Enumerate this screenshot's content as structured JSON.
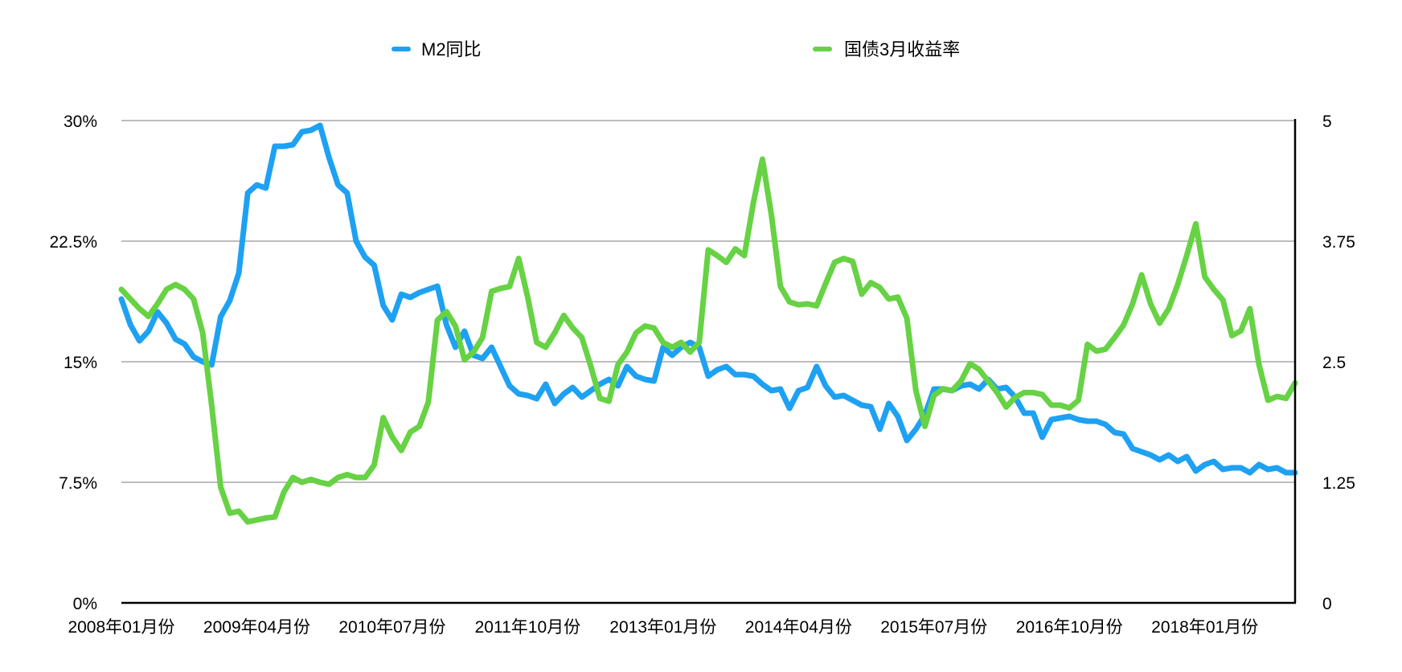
{
  "chart_data": {
    "type": "line",
    "title": "",
    "xlabel": "",
    "ylabel": "",
    "x_tick_labels": [
      "2008年01月份",
      "2009年04月份",
      "2010年07月份",
      "2011年10月份",
      "2013年01月份",
      "2014年04月份",
      "2015年07月份",
      "2016年10月份",
      "2018年01月份"
    ],
    "x_tick_positions": [
      0,
      15,
      30,
      45,
      60,
      75,
      90,
      105,
      120
    ],
    "x_count": 131,
    "y_left": {
      "ticks": [
        "0%",
        "7.5%",
        "15%",
        "22.5%",
        "30%"
      ],
      "min": 0,
      "max": 30,
      "unit": "%"
    },
    "y_right": {
      "ticks": [
        "0",
        "1.25",
        "2.5",
        "3.75",
        "5"
      ],
      "min": 0,
      "max": 5
    },
    "grid": true,
    "legend_position": "top",
    "series": [
      {
        "name": "M2同比",
        "axis": "left",
        "color": "#1EA1F2",
        "values": [
          18.9,
          17.3,
          16.3,
          16.9,
          18.1,
          17.4,
          16.4,
          16.1,
          15.3,
          15.0,
          14.8,
          17.8,
          18.8,
          20.5,
          25.5,
          26.0,
          25.8,
          28.4,
          28.4,
          28.5,
          29.3,
          29.4,
          29.7,
          27.7,
          26.0,
          25.5,
          22.5,
          21.5,
          21.0,
          18.5,
          17.6,
          19.2,
          19.0,
          19.3,
          19.5,
          19.7,
          17.3,
          15.9,
          16.9,
          15.4,
          15.2,
          15.9,
          14.7,
          13.5,
          13.0,
          12.9,
          12.7,
          13.6,
          12.4,
          13.0,
          13.4,
          12.8,
          13.2,
          13.6,
          13.9,
          13.5,
          14.7,
          14.1,
          13.9,
          13.8,
          15.9,
          15.4,
          15.9,
          16.2,
          15.9,
          14.1,
          14.5,
          14.7,
          14.2,
          14.2,
          14.1,
          13.6,
          13.2,
          13.3,
          12.1,
          13.2,
          13.4,
          14.7,
          13.5,
          12.8,
          12.9,
          12.6,
          12.3,
          12.2,
          10.8,
          12.4,
          11.6,
          10.1,
          10.8,
          11.7,
          13.3,
          13.3,
          13.2,
          13.5,
          13.6,
          13.3,
          13.9,
          13.3,
          13.4,
          12.8,
          11.8,
          11.8,
          10.3,
          11.4,
          11.5,
          11.6,
          11.4,
          11.3,
          11.3,
          11.1,
          10.6,
          10.5,
          9.6,
          9.4,
          9.2,
          8.9,
          9.2,
          8.8,
          9.1,
          8.2,
          8.6,
          8.8,
          8.3,
          8.4,
          8.4,
          8.1,
          8.6,
          8.3,
          8.4,
          8.1,
          8.1
        ]
      },
      {
        "name": "国债3月收益率",
        "axis": "right",
        "color": "#66D244",
        "values": [
          3.25,
          3.15,
          3.05,
          2.97,
          3.1,
          3.25,
          3.3,
          3.25,
          3.15,
          2.8,
          2.05,
          1.2,
          0.93,
          0.95,
          0.84,
          0.86,
          0.88,
          0.89,
          1.15,
          1.3,
          1.25,
          1.28,
          1.25,
          1.23,
          1.3,
          1.33,
          1.3,
          1.3,
          1.43,
          1.92,
          1.72,
          1.58,
          1.77,
          1.83,
          2.08,
          2.93,
          3.02,
          2.87,
          2.52,
          2.6,
          2.75,
          3.23,
          3.26,
          3.28,
          3.57,
          3.17,
          2.7,
          2.65,
          2.8,
          2.98,
          2.85,
          2.75,
          2.45,
          2.12,
          2.09,
          2.47,
          2.6,
          2.8,
          2.87,
          2.85,
          2.7,
          2.65,
          2.7,
          2.6,
          2.7,
          3.66,
          3.6,
          3.53,
          3.67,
          3.6,
          4.15,
          4.6,
          4.02,
          3.28,
          3.12,
          3.09,
          3.1,
          3.08,
          3.31,
          3.53,
          3.57,
          3.54,
          3.2,
          3.32,
          3.27,
          3.15,
          3.17,
          2.95,
          2.2,
          1.83,
          2.15,
          2.22,
          2.2,
          2.3,
          2.48,
          2.42,
          2.3,
          2.18,
          2.03,
          2.13,
          2.18,
          2.18,
          2.16,
          2.05,
          2.05,
          2.02,
          2.1,
          2.68,
          2.61,
          2.63,
          2.75,
          2.88,
          3.1,
          3.4,
          3.1,
          2.9,
          3.05,
          3.3,
          3.6,
          3.93,
          3.38,
          3.25,
          3.14,
          2.77,
          2.82,
          3.05,
          2.47,
          2.1,
          2.14,
          2.12,
          2.28
        ]
      }
    ]
  }
}
